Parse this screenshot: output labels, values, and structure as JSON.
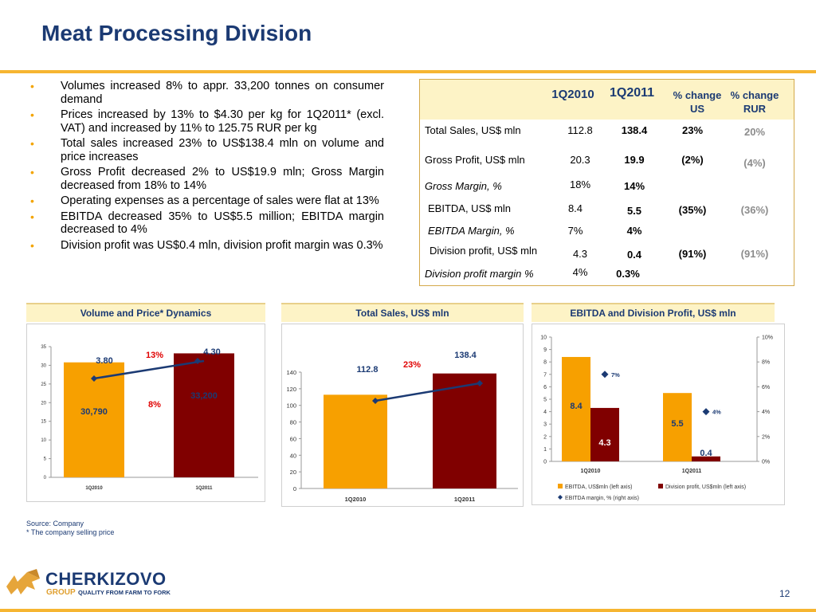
{
  "page": {
    "title": "Meat Processing Division",
    "page_number": "12",
    "source_note": "Source: Company",
    "price_note": "* The company selling price"
  },
  "colors": {
    "brand_blue": "#1b3a73",
    "orange": "#f7a000",
    "maroon": "#800000",
    "accent_red": "#e00000",
    "rule_gold": "#f6b531"
  },
  "bullets": [
    "Volumes increased 8% to appr. 33,200 tonnes on consumer demand",
    "Prices increased by 13% to $4.30 per kg for 1Q2011* (excl. VAT) and increased by 11% to 125.75 RUR per kg",
    "Total sales increased 23% to US$138.4 mln on volume and price increases",
    "Gross Profit decreased 2% to US$19.9 mln; Gross Margin decreased from 18% to 14%",
    "Operating expenses as a percentage of sales were flat at 13%",
    "EBITDA decreased 35% to US$5.5 million; EBITDA margin decreased to 4%",
    "Division profit was US$0.4 mln, division profit margin was 0.3%"
  ],
  "metrics_table": {
    "headers": {
      "q1": "1Q2010",
      "q2": "1Q2011",
      "chg_us_line1": "% change",
      "chg_us_line2": "US",
      "chg_rur_line1": "% change",
      "chg_rur_line2": "RUR"
    },
    "rows": [
      {
        "label": "Total Sales, US$ mln",
        "italic": false,
        "v2010": "112.8",
        "v2011": "138.4",
        "chg_us": "23%",
        "chg_rur": "20%"
      },
      {
        "label": "Gross Profit, US$ mln",
        "italic": false,
        "v2010": "20.3",
        "v2011": "19.9",
        "chg_us": "(2%)",
        "chg_rur": "(4%)"
      },
      {
        "label": "Gross Margin, %",
        "italic": true,
        "v2010": "18%",
        "v2011": "14%",
        "chg_us": "",
        "chg_rur": ""
      },
      {
        "label": "EBITDA, US$ mln",
        "italic": false,
        "v2010": "8.4",
        "v2011": "5.5",
        "chg_us": "(35%)",
        "chg_rur": "(36%)"
      },
      {
        "label": "EBITDA Margin, %",
        "italic": true,
        "v2010": "7%",
        "v2011": "4%",
        "chg_us": "",
        "chg_rur": ""
      },
      {
        "label": "Division profit, US$ mln",
        "italic": false,
        "v2010": "4.3",
        "v2011": "0.4",
        "chg_us": "(91%)",
        "chg_rur": "(91%)"
      },
      {
        "label": "Division profit margin %",
        "italic": true,
        "v2010": "4%",
        "v2011": "0.3%",
        "chg_us": "",
        "chg_rur": ""
      }
    ]
  },
  "chart_data": [
    {
      "type": "bar",
      "title": "Volume and Price* Dynamics",
      "categories": [
        "1Q2010",
        "1Q2011"
      ],
      "series": [
        {
          "values": [
            30790,
            33200
          ],
          "labels": [
            "30,790",
            "33,200"
          ]
        },
        {
          "values": [
            3.8,
            4.3
          ],
          "labels": [
            "3.80",
            "4.30"
          ]
        }
      ],
      "ylim": [
        0,
        35000
      ],
      "yticks": [
        "0",
        "5",
        "10",
        "15",
        "20",
        "25",
        "30",
        "35"
      ],
      "annotations": [
        "13%",
        "8%"
      ],
      "grid": false
    },
    {
      "type": "bar",
      "title": "Total Sales, US$ mln",
      "categories": [
        "1Q2010",
        "1Q2011"
      ],
      "values": [
        112.8,
        138.4
      ],
      "labels": [
        "112.8",
        "138.4"
      ],
      "ylim": [
        0,
        140
      ],
      "yticks": [
        "0",
        "20",
        "40",
        "60",
        "80",
        "100",
        "120",
        "140"
      ],
      "annotations": [
        "23%"
      ],
      "grid": false
    },
    {
      "type": "bar",
      "title": "EBITDA and Division Profit, US$ mln",
      "categories": [
        "1Q2010",
        "1Q2011"
      ],
      "series": [
        {
          "name": "EBITDA, US$mln (left axis)",
          "values": [
            8.4,
            5.5
          ],
          "labels": [
            "8.4",
            "5.5"
          ]
        },
        {
          "name": "Division profit, US$mln (left axis)",
          "values": [
            4.3,
            0.4
          ],
          "labels": [
            "4.3",
            "0.4"
          ]
        },
        {
          "name": "EBITDA margin, % (right axis)",
          "values": [
            7,
            4
          ],
          "labels": [
            "7%",
            "4%"
          ]
        }
      ],
      "ylim": [
        0,
        10
      ],
      "y2lim": [
        0,
        10
      ],
      "yticks": [
        "0",
        "1",
        "2",
        "3",
        "4",
        "5",
        "6",
        "7",
        "8",
        "9",
        "10"
      ],
      "y2ticks": [
        "0%",
        "2%",
        "4%",
        "6%",
        "8%",
        "10%"
      ],
      "legend": "bottom",
      "grid": false
    }
  ]
}
